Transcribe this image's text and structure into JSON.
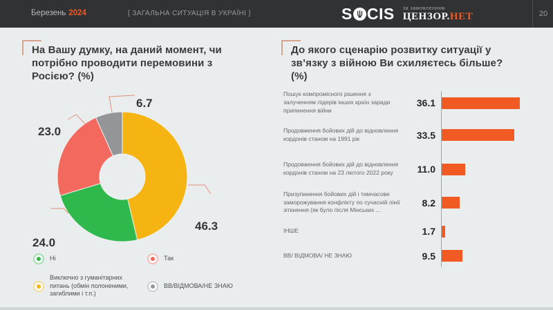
{
  "header": {
    "month": "Березень",
    "year": "2024",
    "section_label": "[ ЗАГАЛЬНА СИТУАЦІЯ В УКРАЇНІ ]",
    "logo": {
      "socis_prefix": "S",
      "socis_suffix": "CIS",
      "commissioned_by": "за замовленням",
      "censor_name": "ЦЕНЗОР.",
      "censor_net": "НЕТ"
    },
    "page_number": "20"
  },
  "colors": {
    "accent_orange": "#EE5A24",
    "header_bg": "#313234",
    "page_bg": "#E9EDEE",
    "bar_orange": "#F15A22",
    "leader_line": "#E2907A",
    "corner_bracket": "#D8A48E"
  },
  "chart_data": [
    {
      "type": "pie",
      "subtype": "donut",
      "title": "На Вашу думку, на даний момент, чи потрібно проводити перемовини з Росією? (%)",
      "start_angle_deg": 0,
      "direction": "clockwise",
      "slices": [
        {
          "label": "Виключно з гуманітарних питань (обмін полоненими, загиблими і т.п.)",
          "value": 46.3,
          "color": "#F5B411"
        },
        {
          "label": "Ні",
          "value": 24.0,
          "color": "#2FB84C"
        },
        {
          "label": "Так",
          "value": 23.0,
          "color": "#F4695E"
        },
        {
          "label": "ВВ/ВІДМОВА/НЕ ЗНАЮ",
          "value": 6.7,
          "color": "#939598"
        }
      ],
      "legend_position": "bottom",
      "legend": [
        {
          "label": "Ні",
          "color": "#2FB84C"
        },
        {
          "label": "Так",
          "color": "#F4695E"
        },
        {
          "label": "Виключно з гуманітарних питань (обмін полоненими, загиблими і т.п.)",
          "color": "#F5B411"
        },
        {
          "label": "ВВ/ВІДМОВА/НЕ ЗНАЮ",
          "color": "#939598"
        }
      ]
    },
    {
      "type": "bar",
      "orientation": "horizontal",
      "title": "До якого сценарію розвитку ситуації у зв’язку з війною Ви схиляєтесь більше? (%)",
      "categories": [
        "Пошук компромісного рішення з залученням лідерів інших країн заради припинення війни",
        "Продовження бойових дій до відновлення кордонів станом на 1991 рік",
        "Продовження бойових дій до відновлення кордонів станом на 23 лютого 2022 року",
        "Призупинення бойових дій і тимчасове заморожування конфлікту по сучасній лінії зіткнення (як було після Мінських ...",
        "ІНШЕ",
        "ВВ/ ВІДМОВА/ НЕ ЗНАЮ"
      ],
      "values": [
        36.1,
        33.5,
        11.0,
        8.2,
        1.7,
        9.5
      ],
      "bar_color": "#F15A22",
      "value_labels_position": "left-of-axis",
      "grid": false,
      "xlim": [
        0,
        40
      ]
    }
  ]
}
